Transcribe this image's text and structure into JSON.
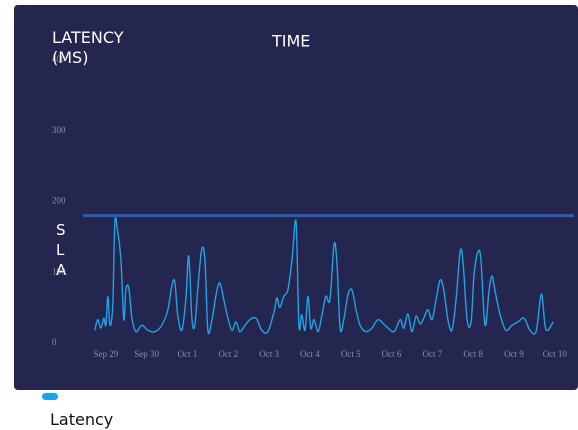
{
  "chart_data": {
    "type": "line",
    "title": "LATENCY (MS)",
    "x_label": "TIME",
    "background": "#24264f",
    "x": [
      -0.27,
      -0.2,
      -0.12,
      -0.05,
      0,
      0.05,
      0.1,
      0.17,
      0.22,
      0.29,
      0.37,
      0.44,
      0.49,
      0.56,
      0.64,
      0.74,
      0.88,
      1.03,
      1.2,
      1.37,
      1.52,
      1.62,
      1.69,
      1.76,
      1.86,
      1.96,
      2.03,
      2.11,
      2.18,
      2.25,
      2.35,
      2.43,
      2.5,
      2.6,
      2.7,
      2.79,
      2.89,
      2.99,
      3.09,
      3.19,
      3.28,
      3.41,
      3.53,
      3.68,
      3.82,
      3.97,
      4.12,
      4.19,
      4.26,
      4.36,
      4.46,
      4.56,
      4.66,
      4.73,
      4.8,
      4.88,
      4.95,
      5.02,
      5.1,
      5.2,
      5.29,
      5.39,
      5.49,
      5.59,
      5.66,
      5.74,
      5.83,
      5.93,
      6.03,
      6.13,
      6.23,
      6.37,
      6.52,
      6.67,
      6.86,
      7.06,
      7.21,
      7.3,
      7.4,
      7.5,
      7.6,
      7.7,
      7.79,
      7.89,
      7.99,
      8.09,
      8.19,
      8.28,
      8.38,
      8.48,
      8.58,
      8.68,
      8.75,
      8.85,
      8.95,
      9.02,
      9.12,
      9.19,
      9.29,
      9.39,
      9.46,
      9.53,
      9.66,
      9.8,
      9.95,
      10.1,
      10.25,
      10.39,
      10.54,
      10.64,
      10.69,
      10.76,
      10.83,
      10.96
    ],
    "series": [
      {
        "name": "Latency",
        "color": "#1ea4e6",
        "values": [
          18,
          33,
          21,
          35,
          25,
          66,
          25,
          54,
          171,
          157,
          117,
          33,
          75,
          78,
          35,
          16,
          25,
          18,
          16,
          25,
          47,
          82,
          86,
          40,
          18,
          61,
          123,
          33,
          25,
          75,
          133,
          115,
          18,
          33,
          68,
          85,
          61,
          35,
          18,
          30,
          16,
          25,
          33,
          35,
          18,
          16,
          44,
          64,
          50,
          66,
          75,
          117,
          171,
          25,
          40,
          18,
          66,
          21,
          33,
          16,
          38,
          66,
          61,
          139,
          115,
          21,
          33,
          68,
          75,
          47,
          25,
          16,
          21,
          33,
          24,
          16,
          33,
          21,
          41,
          16,
          38,
          27,
          35,
          47,
          33,
          61,
          89,
          75,
          33,
          18,
          61,
          129,
          115,
          33,
          30,
          96,
          129,
          117,
          25,
          75,
          95,
          75,
          40,
          18,
          25,
          30,
          35,
          18,
          16,
          61,
          66,
          25,
          18,
          30
        ]
      }
    ],
    "reference_line": {
      "label": "SLA",
      "value": 180,
      "color": "#2a5db0"
    },
    "xlim": [
      -0.56,
      11.47
    ],
    "xticks": [
      {
        "value": 0,
        "label": "Sep 29"
      },
      {
        "value": 1,
        "label": "Sep 30"
      },
      {
        "value": 2,
        "label": "Oct 1"
      },
      {
        "value": 3,
        "label": "Oct 2"
      },
      {
        "value": 4,
        "label": "Oct 3"
      },
      {
        "value": 5,
        "label": "Oct 4"
      },
      {
        "value": 6,
        "label": "Oct 5"
      },
      {
        "value": 7,
        "label": "Oct 6"
      },
      {
        "value": 8,
        "label": "Oct 7"
      },
      {
        "value": 9,
        "label": "Oct 8"
      },
      {
        "value": 10,
        "label": "Oct 9"
      },
      {
        "value": 11,
        "label": "Oct 10"
      }
    ],
    "ylim": [
      0,
      400
    ],
    "yticks": [
      0,
      100,
      200,
      300,
      400
    ],
    "legend": "bottom-left"
  }
}
